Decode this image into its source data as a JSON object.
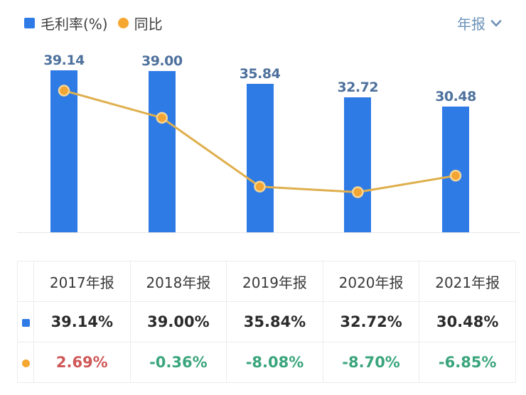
{
  "legend": {
    "items": [
      {
        "label": "毛利率(%)",
        "shape": "square",
        "color": "#2F7BE6"
      },
      {
        "label": "同比",
        "shape": "circle",
        "color": "#F5A72F"
      }
    ]
  },
  "period_selector": {
    "label": "年报",
    "icon": "chevron-down-icon",
    "color": "#6B92B8"
  },
  "chart_data": {
    "type": "bar",
    "categories": [
      "2017年报",
      "2018年报",
      "2019年报",
      "2020年报",
      "2021年报"
    ],
    "series": [
      {
        "name": "毛利率(%)",
        "type": "bar",
        "values": [
          39.14,
          39.0,
          35.84,
          32.72,
          30.48
        ],
        "labels": [
          "39.14",
          "39.00",
          "35.84",
          "32.72",
          "30.48"
        ],
        "color": "#2F7BE6",
        "label_color": "#4E719C"
      },
      {
        "name": "同比",
        "type": "line",
        "values": [
          2.69,
          -0.36,
          -8.08,
          -8.7,
          -6.85
        ],
        "color": "#DFAF4D",
        "point_color": "#F2A532",
        "point_halo": "#F6D695"
      }
    ],
    "title": "",
    "xlabel": "",
    "ylabel": "",
    "bar_axis_range": [
      0,
      56
    ],
    "line_axis_range": [
      -13.2,
      15.5
    ],
    "grid": false,
    "legend_position": "top-left",
    "baseline_color": "#E8E8E8"
  },
  "table": {
    "columns": [
      "2017年报",
      "2018年报",
      "2019年报",
      "2020年报",
      "2021年报"
    ],
    "rows": [
      {
        "series": "毛利率(%)",
        "marker": "square",
        "marker_color": "#2F7BE6",
        "values": [
          "39.14%",
          "39.00%",
          "35.84%",
          "32.72%",
          "30.48%"
        ],
        "value_colors": [
          "#2B2B2B",
          "#2B2B2B",
          "#2B2B2B",
          "#2B2B2B",
          "#2B2B2B"
        ]
      },
      {
        "series": "同比",
        "marker": "circle",
        "marker_color": "#F5A72F",
        "values": [
          "2.69%",
          "-0.36%",
          "-8.08%",
          "-8.70%",
          "-6.85%"
        ],
        "value_colors": [
          "#D05858",
          "#3AA57C",
          "#3AA57C",
          "#3AA57C",
          "#3AA57C"
        ]
      }
    ]
  }
}
